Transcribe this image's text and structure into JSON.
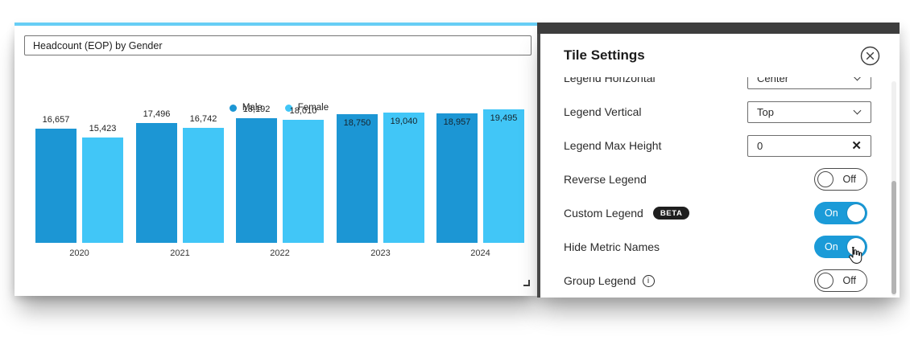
{
  "left_tile": {
    "title_value": "Headcount (EOP) by Gender"
  },
  "chart_data": {
    "type": "bar",
    "title": "Headcount (EOP) by Gender",
    "categories": [
      "2020",
      "2021",
      "2022",
      "2023",
      "2024"
    ],
    "series": [
      {
        "name": "Male",
        "color": "#1c96d4",
        "values": [
          16657,
          17496,
          18192,
          18750,
          18957
        ]
      },
      {
        "name": "Female",
        "color": "#41c6f7",
        "values": [
          15423,
          16742,
          18010,
          19040,
          19495
        ]
      }
    ],
    "data_labels": {
      "format": "thousands-comma",
      "position_by_group": [
        "above",
        "above",
        "above",
        "inside",
        "inside"
      ]
    },
    "legend": {
      "position": "top",
      "entries": [
        "Male",
        "Female"
      ]
    },
    "xlabel": "",
    "ylabel": "",
    "ylim": [
      0,
      19600
    ],
    "grid": false,
    "axes_hidden": true
  },
  "settings_panel": {
    "title": "Tile Settings",
    "rows": [
      {
        "label": "Legend Horizontal",
        "control": "dropdown",
        "value": "Center",
        "partially_scrolled": true
      },
      {
        "label": "Legend Vertical",
        "control": "dropdown",
        "value": "Top"
      },
      {
        "label": "Legend Max Height",
        "control": "text-input",
        "value": "0",
        "clear_icon": true
      },
      {
        "label": "Reverse Legend",
        "control": "toggle",
        "state": "Off"
      },
      {
        "label": "Custom Legend",
        "control": "toggle",
        "state": "On",
        "badge": "BETA"
      },
      {
        "label": "Hide Metric Names",
        "control": "toggle",
        "state": "On",
        "hovered": true
      },
      {
        "label": "Group Legend",
        "control": "toggle",
        "state": "Off",
        "has_info_icon": true
      }
    ]
  },
  "colors": {
    "male": "#1c96d4",
    "female": "#41c6f7",
    "toggle_on": "#1b9bd8",
    "tile_accent": "#67cef5",
    "panel_top_bar": "#3d3d3d",
    "badge_bg": "#1f1f1f"
  }
}
